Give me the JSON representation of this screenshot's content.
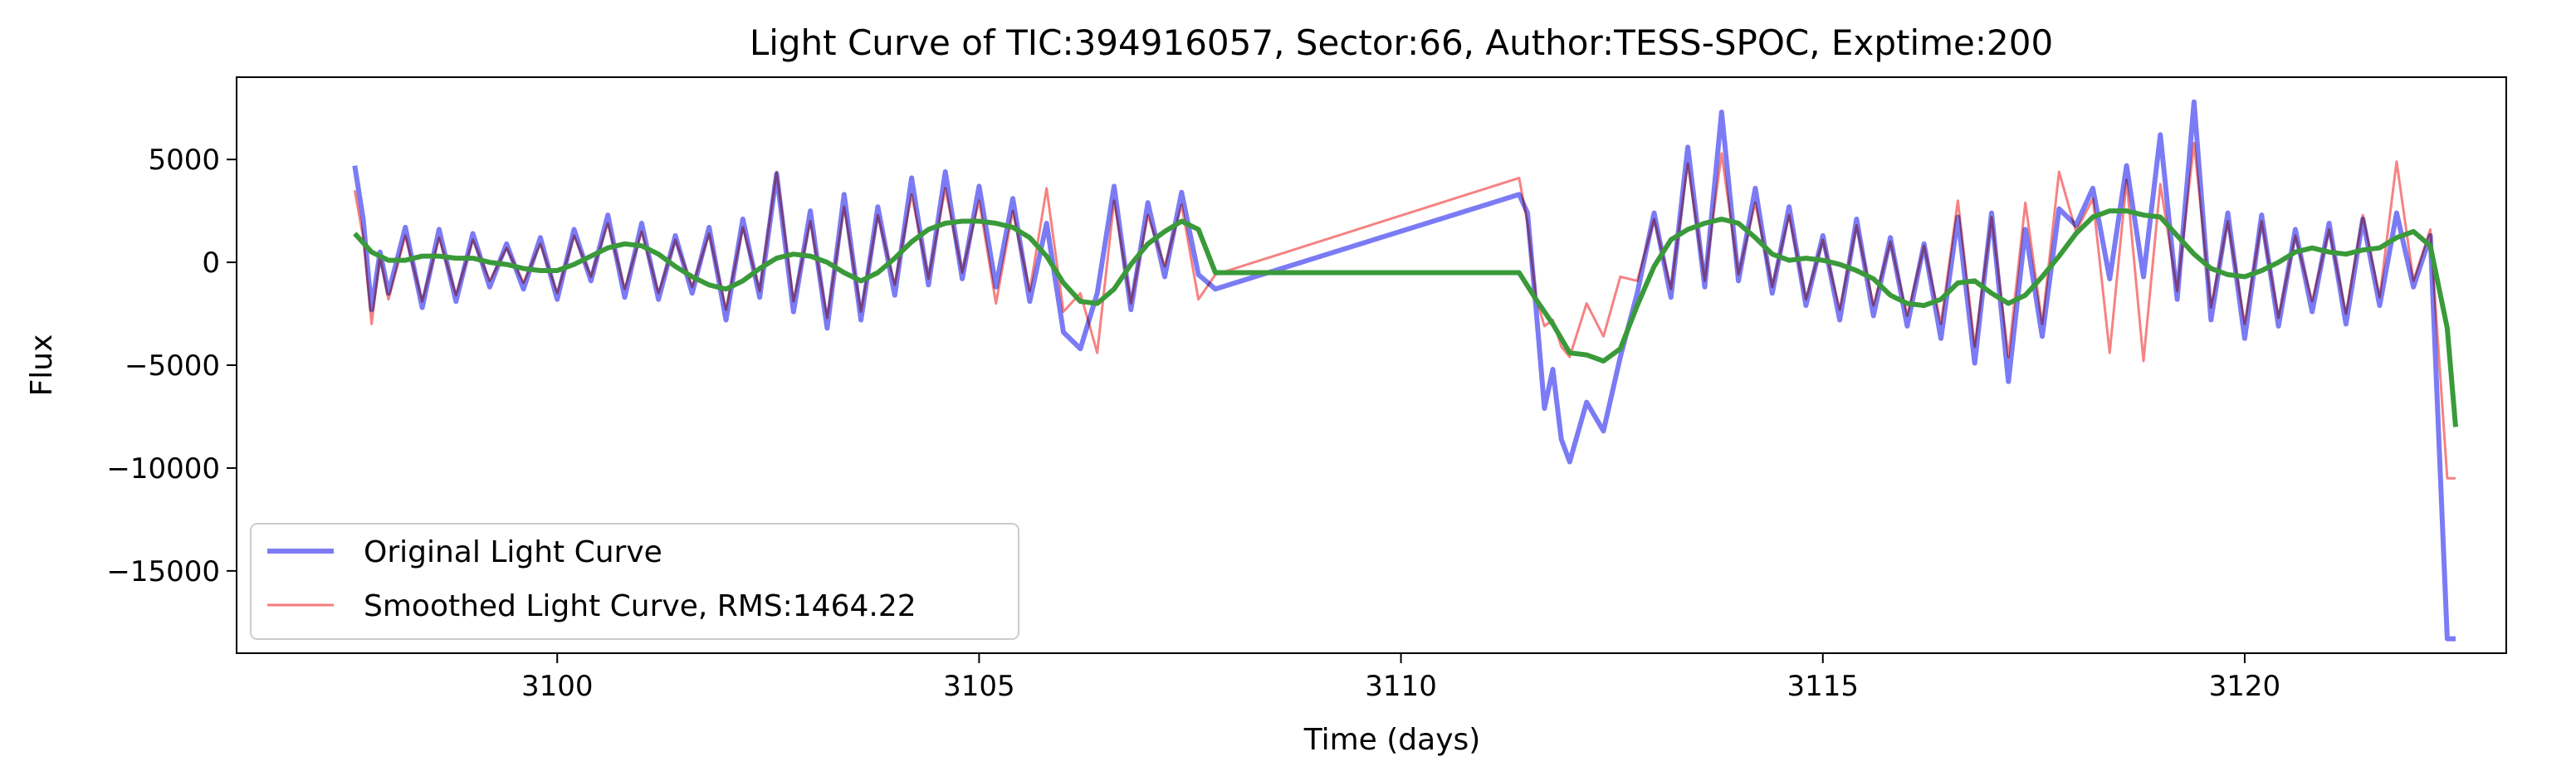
{
  "chart_data": {
    "type": "line",
    "title": "Light Curve of TIC:394916057, Sector:66, Author:TESS-SPOC, Exptime:200",
    "xlabel": "Time (days)",
    "ylabel": "Flux",
    "xlim": [
      3096.2,
      3123.1
    ],
    "ylim": [
      -19000,
      9000
    ],
    "xticks": [
      3100,
      3105,
      3110,
      3115,
      3120
    ],
    "xtick_labels": [
      "3100",
      "3105",
      "3110",
      "3115",
      "3120"
    ],
    "yticks": [
      5000,
      0,
      -5000,
      -10000,
      -15000
    ],
    "ytick_labels": [
      "5000",
      "0",
      "−5000",
      "−10000",
      "−15000"
    ],
    "grid": false,
    "legend_position": "lower-left",
    "series": [
      {
        "name": "Original Light Curve",
        "color": "#7b7bf5",
        "x": [
          3097.6,
          3097.7,
          3097.8,
          3097.9,
          3098.0,
          3098.2,
          3098.4,
          3098.6,
          3098.8,
          3099.0,
          3099.2,
          3099.4,
          3099.6,
          3099.8,
          3100.0,
          3100.2,
          3100.4,
          3100.6,
          3100.8,
          3101.0,
          3101.2,
          3101.4,
          3101.6,
          3101.8,
          3102.0,
          3102.2,
          3102.4,
          3102.6,
          3102.8,
          3103.0,
          3103.2,
          3103.4,
          3103.6,
          3103.8,
          3104.0,
          3104.2,
          3104.4,
          3104.6,
          3104.8,
          3105.0,
          3105.2,
          3105.4,
          3105.6,
          3105.8,
          3106.0,
          3106.2,
          3106.4,
          3106.6,
          3106.8,
          3107.0,
          3107.2,
          3107.4,
          3107.6,
          3107.8,
          3111.4,
          3111.5,
          3111.6,
          3111.7,
          3111.8,
          3111.9,
          3112.0,
          3112.2,
          3112.4,
          3112.6,
          3112.8,
          3113.0,
          3113.2,
          3113.4,
          3113.6,
          3113.8,
          3114.0,
          3114.2,
          3114.4,
          3114.6,
          3114.8,
          3115.0,
          3115.2,
          3115.4,
          3115.6,
          3115.8,
          3116.0,
          3116.2,
          3116.4,
          3116.6,
          3116.8,
          3117.0,
          3117.2,
          3117.4,
          3117.6,
          3117.8,
          3118.0,
          3118.2,
          3118.4,
          3118.6,
          3118.8,
          3119.0,
          3119.2,
          3119.4,
          3119.6,
          3119.8,
          3120.0,
          3120.2,
          3120.4,
          3120.6,
          3120.8,
          3121.0,
          3121.2,
          3121.4,
          3121.6,
          3121.8,
          3122.0,
          3122.2,
          3122.4,
          3122.5
        ],
        "values": [
          4700,
          2100,
          -2300,
          500,
          -1500,
          1700,
          -2200,
          1600,
          -1900,
          1400,
          -1200,
          900,
          -1300,
          1200,
          -1800,
          1600,
          -900,
          2300,
          -1700,
          1900,
          -1800,
          1300,
          -1500,
          1700,
          -2800,
          2100,
          -1700,
          4300,
          -2400,
          2500,
          -3200,
          3300,
          -2800,
          2700,
          -1600,
          4100,
          -1100,
          4400,
          -800,
          3700,
          -1200,
          3100,
          -1900,
          1900,
          -3400,
          -4200,
          -1500,
          3700,
          -2300,
          2900,
          -700,
          3400,
          -600,
          -1300,
          3300,
          2400,
          -2200,
          -7100,
          -5200,
          -8600,
          -9700,
          -6800,
          -8200,
          -4600,
          -1500,
          2400,
          -1700,
          5600,
          -1200,
          7300,
          -900,
          3600,
          -1500,
          2700,
          -2100,
          1300,
          -2800,
          2100,
          -2600,
          1200,
          -3100,
          900,
          -3700,
          2200,
          -4900,
          2400,
          -5800,
          1600,
          -3600,
          2600,
          1800,
          3600,
          -800,
          4700,
          -700,
          6200,
          -1800,
          7800,
          -2800,
          2400,
          -3700,
          2300,
          -3100,
          1600,
          -2400,
          1900,
          -3000,
          2100,
          -2100,
          2400,
          -1200,
          1300,
          -18300,
          -18300
        ]
      },
      {
        "name": "Smoothed Light Curve, RMS:1464.22",
        "color": "#f57b7b",
        "x": [
          3097.6,
          3097.7,
          3097.8,
          3097.9,
          3098.0,
          3098.2,
          3098.4,
          3098.6,
          3098.8,
          3099.0,
          3099.2,
          3099.4,
          3099.6,
          3099.8,
          3100.0,
          3100.2,
          3100.4,
          3100.6,
          3100.8,
          3101.0,
          3101.2,
          3101.4,
          3101.6,
          3101.8,
          3102.0,
          3102.2,
          3102.4,
          3102.6,
          3102.8,
          3103.0,
          3103.2,
          3103.4,
          3103.6,
          3103.8,
          3104.0,
          3104.2,
          3104.4,
          3104.6,
          3104.8,
          3105.0,
          3105.2,
          3105.4,
          3105.6,
          3105.8,
          3106.0,
          3106.2,
          3106.4,
          3106.6,
          3106.8,
          3107.0,
          3107.2,
          3107.4,
          3107.6,
          3107.8,
          3111.4,
          3111.5,
          3111.6,
          3111.7,
          3111.8,
          3111.9,
          3112.0,
          3112.2,
          3112.4,
          3112.6,
          3112.8,
          3113.0,
          3113.2,
          3113.4,
          3113.6,
          3113.8,
          3114.0,
          3114.2,
          3114.4,
          3114.6,
          3114.8,
          3115.0,
          3115.2,
          3115.4,
          3115.6,
          3115.8,
          3116.0,
          3116.2,
          3116.4,
          3116.6,
          3116.8,
          3117.0,
          3117.2,
          3117.4,
          3117.6,
          3117.8,
          3118.0,
          3118.2,
          3118.4,
          3118.6,
          3118.8,
          3119.0,
          3119.2,
          3119.4,
          3119.6,
          3119.8,
          3120.0,
          3120.2,
          3120.4,
          3120.6,
          3120.8,
          3121.0,
          3121.2,
          3121.4,
          3121.6,
          3121.8,
          3122.0,
          3122.2,
          3122.4,
          3122.5
        ],
        "values": [
          3500,
          1200,
          -3000,
          300,
          -1800,
          1300,
          -1900,
          1200,
          -1600,
          1100,
          -900,
          700,
          -1000,
          900,
          -1500,
          1300,
          -700,
          1900,
          -1300,
          1500,
          -1500,
          1100,
          -1200,
          1400,
          -2300,
          1700,
          -1400,
          4400,
          -1900,
          2000,
          -2700,
          2700,
          -2400,
          2300,
          -1100,
          3300,
          -800,
          3600,
          -500,
          3000,
          -2000,
          2500,
          -1400,
          3600,
          -2400,
          -1500,
          -4400,
          3000,
          -2000,
          2300,
          -200,
          2800,
          -1800,
          -600,
          4100,
          1900,
          -1700,
          -3100,
          -2800,
          -4100,
          -4600,
          -2000,
          -3600,
          -700,
          -900,
          2100,
          -1300,
          4800,
          -900,
          5300,
          -600,
          2900,
          -1200,
          2300,
          -1800,
          1100,
          -2300,
          1800,
          -2100,
          1000,
          -2600,
          800,
          -3000,
          3000,
          -4100,
          2200,
          -4600,
          2900,
          -3000,
          4400,
          1500,
          3100,
          -4400,
          4000,
          -4800,
          3800,
          -1400,
          5800,
          -2200,
          2000,
          -3000,
          2000,
          -2700,
          1300,
          -1900,
          1600,
          -2500,
          2300,
          -1700,
          4900,
          -900,
          1600,
          -10500,
          -10500
        ]
      },
      {
        "name": "",
        "color": "#3a9a3a",
        "x": [
          3097.6,
          3097.8,
          3098.0,
          3098.2,
          3098.4,
          3098.6,
          3098.8,
          3099.0,
          3099.2,
          3099.4,
          3099.6,
          3099.8,
          3100.0,
          3100.2,
          3100.4,
          3100.6,
          3100.8,
          3101.0,
          3101.2,
          3101.4,
          3101.6,
          3101.8,
          3102.0,
          3102.2,
          3102.4,
          3102.6,
          3102.8,
          3103.0,
          3103.2,
          3103.4,
          3103.6,
          3103.8,
          3104.0,
          3104.2,
          3104.4,
          3104.6,
          3104.8,
          3105.0,
          3105.2,
          3105.4,
          3105.6,
          3105.8,
          3106.0,
          3106.2,
          3106.4,
          3106.6,
          3106.8,
          3107.0,
          3107.2,
          3107.4,
          3107.6,
          3107.8,
          3111.4,
          3111.6,
          3111.8,
          3112.0,
          3112.2,
          3112.4,
          3112.6,
          3112.8,
          3113.0,
          3113.2,
          3113.4,
          3113.6,
          3113.8,
          3114.0,
          3114.2,
          3114.4,
          3114.6,
          3114.8,
          3115.0,
          3115.2,
          3115.4,
          3115.6,
          3115.8,
          3116.0,
          3116.2,
          3116.4,
          3116.6,
          3116.8,
          3117.0,
          3117.2,
          3117.4,
          3117.6,
          3117.8,
          3118.0,
          3118.2,
          3118.4,
          3118.6,
          3118.8,
          3119.0,
          3119.2,
          3119.4,
          3119.6,
          3119.8,
          3120.0,
          3120.2,
          3120.4,
          3120.6,
          3120.8,
          3121.0,
          3121.2,
          3121.4,
          3121.6,
          3121.8,
          3122.0,
          3122.2,
          3122.4,
          3122.5
        ],
        "values": [
          1400,
          500,
          100,
          100,
          300,
          300,
          200,
          200,
          0,
          -100,
          -300,
          -400,
          -400,
          -100,
          300,
          700,
          900,
          800,
          400,
          -200,
          -700,
          -1100,
          -1300,
          -900,
          -300,
          200,
          400,
          300,
          0,
          -500,
          -900,
          -500,
          200,
          1000,
          1600,
          1900,
          2000,
          2000,
          1900,
          1700,
          1200,
          300,
          -1000,
          -1900,
          -2000,
          -1300,
          -100,
          900,
          1500,
          2000,
          1600,
          -500,
          -500,
          -1800,
          -3000,
          -4400,
          -4500,
          -4800,
          -4200,
          -2100,
          -200,
          1100,
          1600,
          1900,
          2100,
          1900,
          1200,
          400,
          100,
          200,
          100,
          -100,
          -400,
          -800,
          -1600,
          -2000,
          -2100,
          -1800,
          -1000,
          -900,
          -1500,
          -2000,
          -1600,
          -700,
          300,
          1400,
          2200,
          2500,
          2500,
          2300,
          2200,
          1300,
          400,
          -300,
          -600,
          -700,
          -400,
          0,
          500,
          700,
          500,
          400,
          600,
          700,
          1200,
          1500,
          800,
          -3200,
          -8000
        ]
      }
    ]
  }
}
